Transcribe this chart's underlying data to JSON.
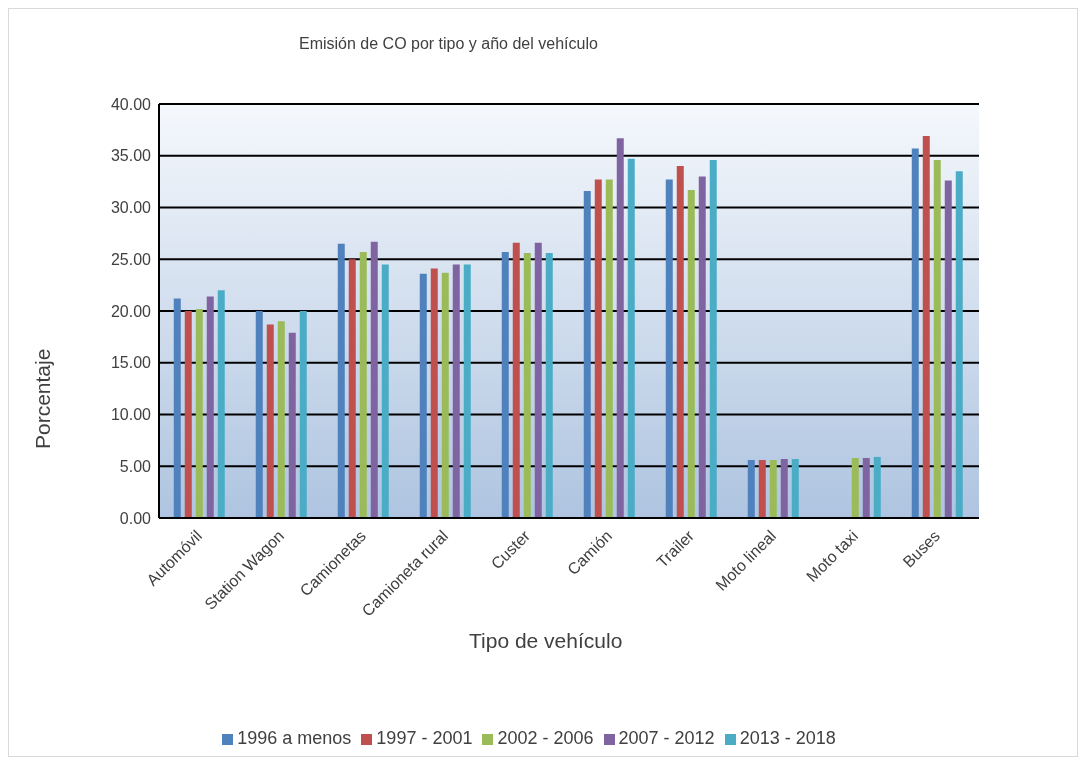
{
  "chart_data": {
    "type": "bar",
    "title": "Emisión de CO por tipo y año del vehículo",
    "xlabel": "Tipo de vehículo",
    "ylabel": "Porcentaje",
    "categories": [
      "Automóvil",
      "Station Wagon",
      "Camionetas",
      "Camioneta rural",
      "Custer",
      "Camión",
      "Trailer",
      "Moto lineal",
      "Moto taxi",
      "Buses"
    ],
    "series": [
      {
        "name": "1996 a menos",
        "color": "#4f81bd",
        "values": [
          21.2,
          20.0,
          26.5,
          23.6,
          25.7,
          31.6,
          32.7,
          5.6,
          null,
          35.7
        ]
      },
      {
        "name": "1997 - 2001",
        "color": "#c0504d",
        "values": [
          20.0,
          18.7,
          25.0,
          24.1,
          26.6,
          32.7,
          34.0,
          5.6,
          null,
          36.9
        ]
      },
      {
        "name": "2002 - 2006",
        "color": "#9bbb59",
        "values": [
          20.2,
          19.0,
          25.7,
          23.7,
          25.6,
          32.7,
          31.7,
          5.6,
          5.8,
          34.6
        ]
      },
      {
        "name": "2007 - 2012",
        "color": "#8064a2",
        "values": [
          21.4,
          17.9,
          26.7,
          24.5,
          26.6,
          36.7,
          33.0,
          5.7,
          5.8,
          32.6
        ]
      },
      {
        "name": "2013 - 2018",
        "color": "#4bacc6",
        "values": [
          22.0,
          20.0,
          24.5,
          24.5,
          25.6,
          34.7,
          34.6,
          5.7,
          5.9,
          33.5
        ]
      }
    ],
    "ylim": [
      0,
      40
    ],
    "yticks": [
      {
        "value": 0,
        "label": "0.00"
      },
      {
        "value": 5,
        "label": "5.00"
      },
      {
        "value": 10,
        "label": "10.00"
      },
      {
        "value": 15,
        "label": "15.00"
      },
      {
        "value": 20,
        "label": "20.00"
      },
      {
        "value": 25,
        "label": "25.00"
      },
      {
        "value": 30,
        "label": "30.00"
      },
      {
        "value": 35,
        "label": "35.00"
      },
      {
        "value": 40,
        "label": "40.00"
      }
    ],
    "grid": "y",
    "legend": "bottom"
  }
}
